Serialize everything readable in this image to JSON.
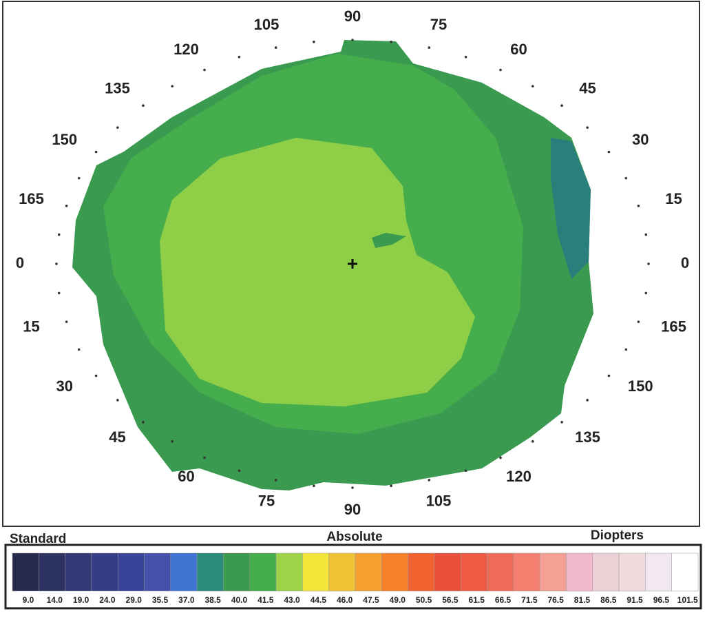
{
  "header": {
    "left": "Standard",
    "center": "Absolute",
    "right": "Diopters"
  },
  "ring": {
    "upper_labels": [
      "0",
      "165",
      "150",
      "135",
      "120",
      "105",
      "90",
      "75",
      "60",
      "45",
      "30",
      "15",
      "0"
    ],
    "lower_labels": [
      "15",
      "30",
      "45",
      "60",
      "75",
      "90",
      "105",
      "120",
      "135",
      "150",
      "165"
    ]
  },
  "scale": {
    "labels": [
      "9.0",
      "14.0",
      "19.0",
      "24.0",
      "29.0",
      "35.5",
      "37.0",
      "38.5",
      "40.0",
      "41.5",
      "43.0",
      "44.5",
      "46.0",
      "47.5",
      "49.0",
      "50.5",
      "56.5",
      "61.5",
      "66.5",
      "71.5",
      "76.5",
      "81.5",
      "86.5",
      "91.5",
      "96.5",
      "101.5"
    ],
    "colors": [
      "#262b4e",
      "#2d3360",
      "#313874",
      "#343e86",
      "#394498",
      "#4450aa",
      "#3f74d2",
      "#2a8a7c",
      "#3a9a50",
      "#45ad4c",
      "#9fd44a",
      "#f2e63a",
      "#f2c236",
      "#f5a030",
      "#f58028",
      "#f06230",
      "#e8503a",
      "#f05a45",
      "#f06a58",
      "#f58070",
      "#f5a095",
      "#f2b8cc",
      "#ecd0d5",
      "#f0dcdc",
      "#f2e8f2",
      "#ffffff"
    ]
  }
}
